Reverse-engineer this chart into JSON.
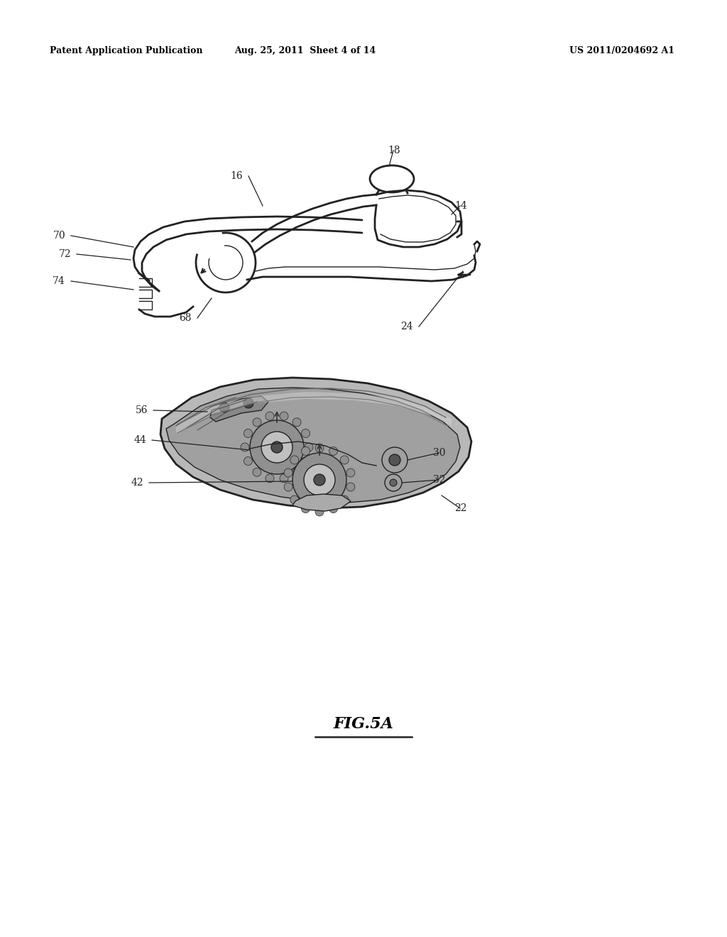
{
  "background_color": "#ffffff",
  "header_left": "Patent Application Publication",
  "header_center": "Aug. 25, 2011  Sheet 4 of 14",
  "header_right": "US 2011/0204692 A1",
  "figure_label": "FIG.5A",
  "header_fontsize": 9,
  "figure_label_fontsize": 14
}
